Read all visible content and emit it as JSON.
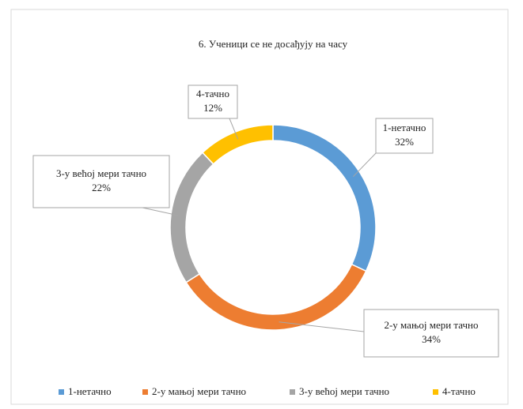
{
  "chart_data": {
    "type": "donut",
    "title": "6. Ученици се не досађују на часу",
    "categories": [
      "1-нетачно",
      "2-у мањој мери тачно",
      "3-у већој мери тачно",
      "4-тачно"
    ],
    "values": [
      32,
      34,
      22,
      12
    ],
    "value_labels": [
      "32%",
      "34%",
      "22%",
      "12%"
    ],
    "colors": [
      "#5b9bd5",
      "#ed7d31",
      "#a5a5a5",
      "#ffc000"
    ],
    "legend": "bottom"
  }
}
